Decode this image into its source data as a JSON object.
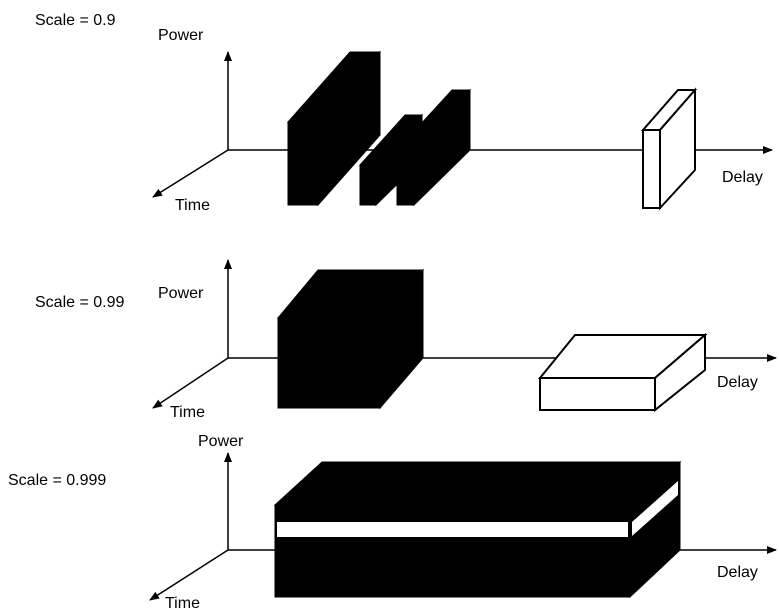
{
  "panels": [
    {
      "scale": "Scale = 0.9",
      "y_axis": "Power",
      "z_axis": "Time",
      "x_axis": "Delay"
    },
    {
      "scale": "Scale = 0.99",
      "y_axis": "Power",
      "z_axis": "Time",
      "x_axis": "Delay"
    },
    {
      "scale": "Scale = 0.999",
      "y_axis": "Power",
      "z_axis": "Time",
      "x_axis": "Delay"
    }
  ]
}
